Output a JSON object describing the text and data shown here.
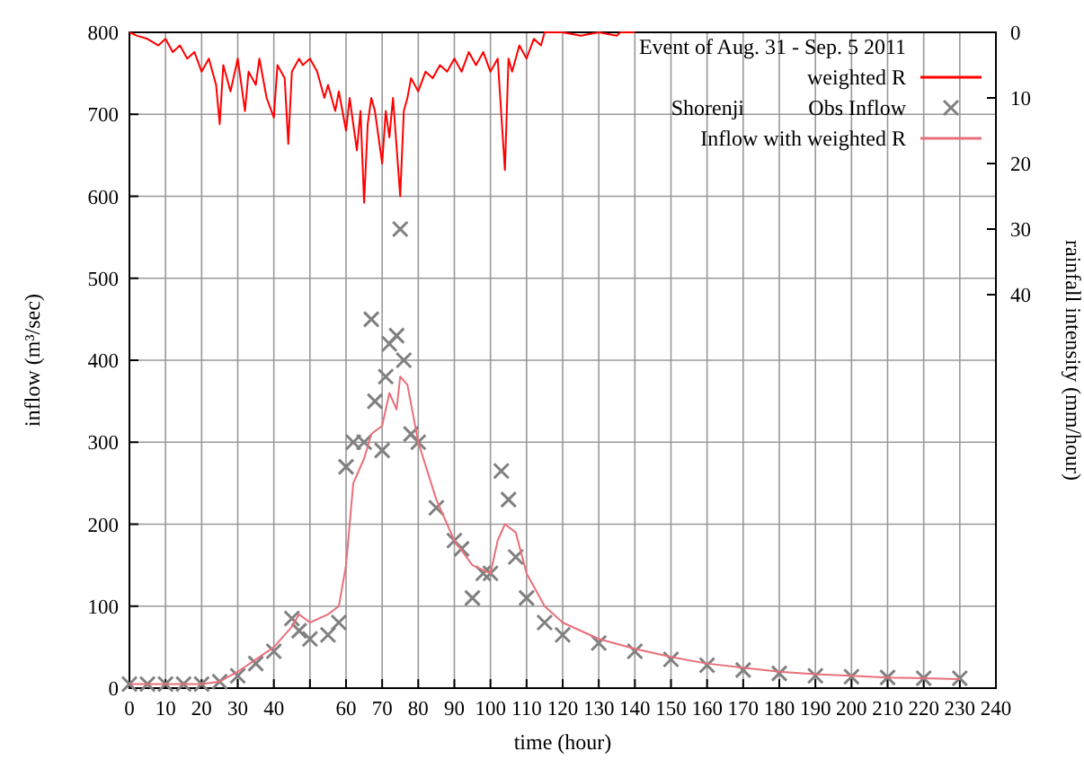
{
  "chart_data": {
    "type": "line",
    "xlabel": "time (hour)",
    "ylabel": "inflow (m³/sec)",
    "y2label": "rainfall intensity (mm/hour)",
    "legend_title": "Event of Aug. 31 - Sep. 5 2011",
    "annotations": [
      "Shorenji"
    ],
    "xlim": [
      0,
      240
    ],
    "xticks": [
      0,
      10,
      20,
      30,
      40,
      {
        "value": 50,
        "label": null
      },
      60,
      70,
      80,
      90,
      100,
      110,
      120,
      130,
      140,
      150,
      160,
      170,
      180,
      190,
      200,
      210,
      220,
      230,
      240
    ],
    "ylim": [
      0,
      800
    ],
    "yticks": [
      0,
      100,
      200,
      300,
      400,
      500,
      600,
      700,
      800
    ],
    "y2lim": [
      100,
      0
    ],
    "y2ticks": [
      0,
      10,
      20,
      30,
      40
    ],
    "grid": true,
    "legend": "top right",
    "series": [
      {
        "name": "weighted R",
        "axis": "y2",
        "color": "#ff0000",
        "marker": "none",
        "x": [
          0,
          2,
          5,
          8,
          10,
          12,
          14,
          16,
          18,
          20,
          22,
          24,
          25,
          26,
          28,
          30,
          32,
          33,
          35,
          36,
          38,
          40,
          41,
          43,
          44,
          45,
          47,
          48,
          50,
          52,
          54,
          55,
          57,
          58,
          60,
          61,
          63,
          64,
          65,
          66,
          67,
          68,
          70,
          71,
          72,
          73,
          75,
          76,
          77,
          78,
          80,
          82,
          84,
          86,
          88,
          90,
          92,
          94,
          96,
          98,
          100,
          102,
          104,
          105,
          106,
          108,
          110,
          112,
          114,
          115,
          120,
          125,
          130,
          135,
          136,
          140
        ],
        "values": [
          0,
          0.5,
          1,
          2,
          1,
          3,
          2,
          4,
          3,
          6,
          4,
          8,
          14,
          5,
          9,
          4,
          12,
          6,
          8,
          4,
          10,
          13,
          5,
          7,
          17,
          6,
          4,
          5,
          4,
          6,
          10,
          8,
          12,
          9,
          15,
          10,
          18,
          12,
          26,
          14,
          10,
          12,
          20,
          12,
          16,
          10,
          25,
          12,
          10,
          7,
          9,
          6,
          7,
          5,
          6,
          4,
          6,
          3,
          5,
          3,
          6,
          4,
          21,
          4,
          6,
          2,
          4,
          1,
          2,
          0,
          0,
          0.5,
          0,
          0.5,
          0,
          0
        ]
      },
      {
        "name": "Obs Inflow",
        "type": "scatter",
        "color": "#808080",
        "marker": "cross",
        "x": [
          0,
          5,
          10,
          15,
          20,
          25,
          30,
          35,
          40,
          45,
          47,
          50,
          55,
          58,
          60,
          62,
          65,
          67,
          68,
          70,
          71,
          72,
          74,
          75,
          76,
          78,
          80,
          85,
          90,
          92,
          95,
          98,
          100,
          103,
          105,
          107,
          110,
          115,
          120,
          130,
          140,
          150,
          160,
          170,
          180,
          190,
          200,
          210,
          220,
          230
        ],
        "values": [
          5,
          5,
          5,
          5,
          5,
          8,
          15,
          30,
          45,
          85,
          70,
          60,
          65,
          80,
          270,
          300,
          300,
          450,
          350,
          290,
          380,
          420,
          430,
          560,
          400,
          310,
          300,
          220,
          180,
          170,
          110,
          140,
          140,
          265,
          230,
          160,
          110,
          80,
          65,
          55,
          45,
          35,
          28,
          22,
          18,
          15,
          14,
          13,
          12,
          12
        ]
      },
      {
        "name": "Inflow with weighted R",
        "color": "#e8707a",
        "marker": "none",
        "x": [
          0,
          20,
          25,
          30,
          35,
          40,
          45,
          47,
          50,
          55,
          58,
          60,
          62,
          63,
          65,
          67,
          70,
          72,
          74,
          75,
          77,
          80,
          85,
          90,
          95,
          100,
          102,
          104,
          107,
          110,
          115,
          120,
          130,
          140,
          150,
          160,
          170,
          180,
          190,
          200,
          210,
          220,
          230
        ],
        "values": [
          5,
          5,
          8,
          20,
          35,
          50,
          75,
          90,
          80,
          90,
          100,
          150,
          250,
          260,
          280,
          310,
          320,
          360,
          340,
          380,
          370,
          300,
          230,
          180,
          150,
          140,
          180,
          200,
          190,
          140,
          100,
          80,
          60,
          48,
          38,
          30,
          25,
          20,
          17,
          15,
          13,
          12,
          11
        ]
      }
    ]
  }
}
